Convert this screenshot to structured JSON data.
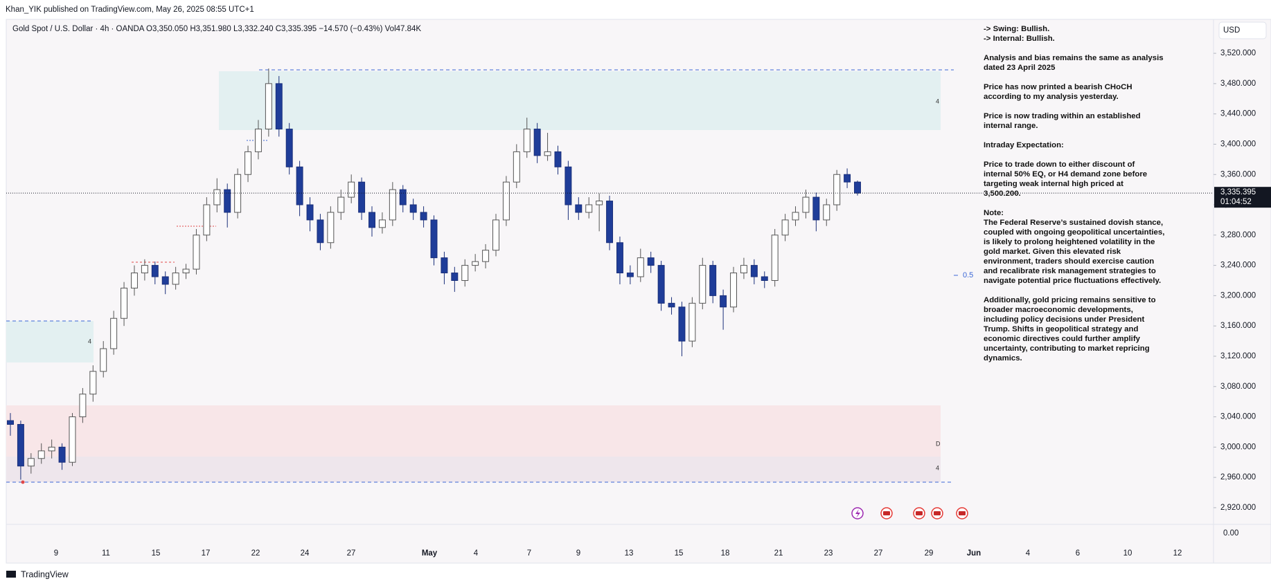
{
  "header": "Khan_YIK published on TradingView.com, May 26, 2025 08:55 UTC+1",
  "footer": "TradingView",
  "chart_data": {
    "type": "candlestick",
    "legend": "Gold Spot / U.S. Dollar · 4h · OANDA  O3,350.050  H3,351.980  L3,332.240  C3,335.395  −14.570 (−0.43%)  Vol47.84K",
    "currency": "USD",
    "last_price_label": "3,335.395",
    "countdown": "01:04:52",
    "volume_axis_label": "0.00",
    "zone_labels": [
      "4",
      "D",
      "4",
      "4"
    ],
    "fib_label": "0.5",
    "up_color": "#ffffff",
    "down_color": "#1f3d99",
    "ylim": [
      2898,
      3563
    ],
    "yticks": [
      {
        "value": 2920,
        "label": "2,920.000"
      },
      {
        "value": 2960,
        "label": "2,960.000"
      },
      {
        "value": 3000,
        "label": "3,000.000"
      },
      {
        "value": 3040,
        "label": "3,040.000"
      },
      {
        "value": 3080,
        "label": "3,080.000"
      },
      {
        "value": 3120,
        "label": "3,120.000"
      },
      {
        "value": 3160,
        "label": "3,160.000"
      },
      {
        "value": 3200,
        "label": "3,200.000"
      },
      {
        "value": 3240,
        "label": "3,240.000"
      },
      {
        "value": 3280,
        "label": "3,280.000"
      },
      {
        "value": 3320,
        "label": "3,320.000"
      },
      {
        "value": 3360,
        "label": "3,360.000"
      },
      {
        "value": 3400,
        "label": "3,400.000"
      },
      {
        "value": 3440,
        "label": "3,440.000"
      },
      {
        "value": 3480,
        "label": "3,480.000"
      },
      {
        "value": 3520,
        "label": "3,520.000"
      }
    ],
    "x_labels": [
      "9",
      "11",
      "15",
      "17",
      "22",
      "24",
      "27",
      "May",
      "4",
      "7",
      "9",
      "13",
      "15",
      "18",
      "21",
      "23",
      "27",
      "29",
      "Jun",
      "4",
      "6",
      "10",
      "12"
    ],
    "open": [
      3035,
      3030,
      2975,
      2985,
      2995,
      3000,
      2980,
      3040,
      3070,
      3100,
      3130,
      3170,
      3210,
      3230,
      3240,
      3225,
      3215,
      3230,
      3235,
      3280,
      3320,
      3340,
      3310,
      3360,
      3390,
      3420,
      3480,
      3420,
      3370,
      3320,
      3300,
      3270,
      3310,
      3330,
      3350,
      3310,
      3290,
      3300,
      3340,
      3320,
      3310,
      3300,
      3250,
      3230,
      3220,
      3240,
      3245,
      3260,
      3300,
      3350,
      3390,
      3420,
      3385,
      3390,
      3370,
      3320,
      3310,
      3320,
      3325,
      3270,
      3230,
      3225,
      3250,
      3240,
      3190,
      3185,
      3140,
      3190,
      3240,
      3200,
      3185,
      3230,
      3240,
      3225,
      3220,
      3280,
      3300,
      3310,
      3330,
      3300,
      3320,
      3360,
      3350.05
    ],
    "high": [
      3045,
      3035,
      2992,
      3005,
      3010,
      3005,
      3045,
      3078,
      3108,
      3140,
      3180,
      3218,
      3240,
      3248,
      3245,
      3232,
      3238,
      3242,
      3288,
      3330,
      3355,
      3348,
      3368,
      3398,
      3432,
      3500,
      3490,
      3428,
      3378,
      3330,
      3308,
      3318,
      3340,
      3360,
      3356,
      3318,
      3310,
      3350,
      3346,
      3328,
      3318,
      3306,
      3258,
      3238,
      3248,
      3255,
      3268,
      3308,
      3358,
      3400,
      3435,
      3428,
      3415,
      3398,
      3378,
      3330,
      3330,
      3335,
      3332,
      3278,
      3240,
      3262,
      3258,
      3246,
      3198,
      3192,
      3198,
      3250,
      3246,
      3208,
      3238,
      3250,
      3248,
      3232,
      3288,
      3308,
      3318,
      3340,
      3336,
      3328,
      3366,
      3368,
      3351.98
    ],
    "low": [
      3015,
      2957,
      2965,
      2978,
      2985,
      2970,
      2975,
      3032,
      3060,
      3092,
      3122,
      3160,
      3200,
      3220,
      3215,
      3202,
      3208,
      3222,
      3228,
      3272,
      3310,
      3290,
      3302,
      3350,
      3380,
      3410,
      3410,
      3360,
      3305,
      3285,
      3260,
      3262,
      3300,
      3322,
      3300,
      3278,
      3282,
      3292,
      3310,
      3300,
      3290,
      3240,
      3215,
      3205,
      3212,
      3232,
      3236,
      3252,
      3292,
      3342,
      3382,
      3375,
      3378,
      3360,
      3300,
      3300,
      3302,
      3285,
      3260,
      3215,
      3215,
      3218,
      3230,
      3180,
      3175,
      3120,
      3132,
      3182,
      3190,
      3155,
      3178,
      3222,
      3215,
      3210,
      3212,
      3272,
      3292,
      3302,
      3285,
      3292,
      3312,
      3342,
      3332.24
    ],
    "close": [
      3030,
      2975,
      2985,
      2995,
      3000,
      2980,
      3040,
      3070,
      3100,
      3130,
      3170,
      3210,
      3230,
      3240,
      3225,
      3215,
      3230,
      3235,
      3280,
      3320,
      3340,
      3310,
      3360,
      3390,
      3420,
      3480,
      3420,
      3370,
      3320,
      3300,
      3270,
      3310,
      3330,
      3350,
      3310,
      3290,
      3300,
      3340,
      3320,
      3310,
      3300,
      3250,
      3230,
      3220,
      3240,
      3245,
      3260,
      3300,
      3350,
      3390,
      3420,
      3385,
      3390,
      3370,
      3320,
      3310,
      3320,
      3325,
      3270,
      3230,
      3225,
      3250,
      3240,
      3190,
      3185,
      3140,
      3190,
      3240,
      3200,
      3185,
      3230,
      3240,
      3225,
      3220,
      3280,
      3300,
      3310,
      3330,
      3300,
      3320,
      3360,
      3350.05,
      3335.395
    ]
  },
  "notes": [
    [
      "-> Swing:  Bullish.",
      "-> Internal:  Bullish."
    ],
    [
      "Analysis and bias remains the same as analysis",
      "dated 23 April 2025"
    ],
    [
      "Price has now printed a bearish CHoCH",
      "according to my analysis yesterday."
    ],
    [
      "Price is now trading within an established",
      "internal range."
    ],
    [
      "Intraday Expectation:"
    ],
    [
      "Price to trade down to either discount of",
      "internal 50% EQ, or H4 demand zone before",
      "targeting weak internal high priced at",
      "3,500.200."
    ],
    [
      "Note:",
      "The Federal Reserve’s sustained dovish stance,",
      "coupled with ongoing geopolitical uncertainties,",
      "is likely to prolong heightened volatility in the",
      "gold market. Given this elevated risk",
      "environment, traders should exercise caution",
      "and recalibrate risk management strategies to",
      "navigate potential price fluctuations effectively."
    ],
    [
      "Additionally, gold pricing remains sensitive to",
      "broader macroeconomic developments,",
      "including policy decisions under President",
      "Trump. Shifts in geopolitical strategy and",
      "economic directives could further amplify",
      "uncertainty, contributing to market repricing",
      "dynamics."
    ]
  ]
}
